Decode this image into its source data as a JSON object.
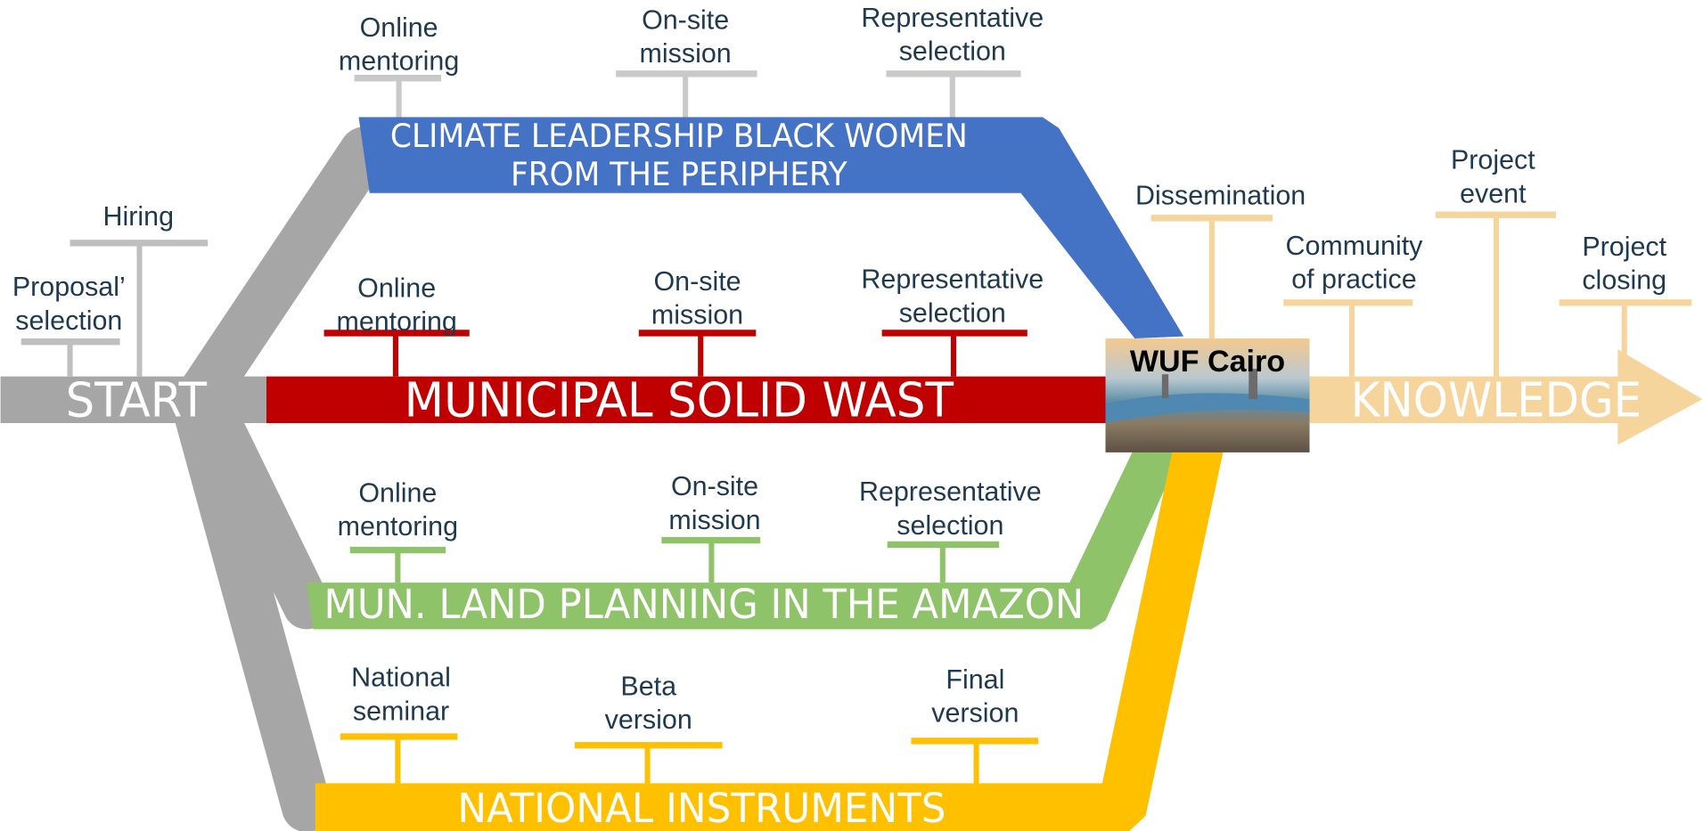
{
  "start": {
    "label": "START",
    "milestones": [
      {
        "lines": [
          "Proposal’",
          "selection"
        ]
      },
      {
        "lines": [
          "Hiring"
        ]
      }
    ]
  },
  "tracks": [
    {
      "title": [
        "CLIMATE LEADERSHIP BLACK WOMEN",
        "FROM THE PERIPHERY"
      ],
      "milestones": [
        {
          "lines": [
            "Online",
            "mentoring"
          ]
        },
        {
          "lines": [
            "On-site",
            "mission"
          ]
        },
        {
          "lines": [
            "Representative",
            "selection"
          ]
        }
      ]
    },
    {
      "title": [
        "MUNICIPAL SOLID WAST"
      ],
      "milestones": [
        {
          "lines": [
            "Online",
            "mentoring"
          ]
        },
        {
          "lines": [
            "On-site",
            "mission"
          ]
        },
        {
          "lines": [
            "Representative",
            "selection"
          ]
        }
      ]
    },
    {
      "title": [
        "MUN. LAND PLANNING IN THE AMAZON"
      ],
      "milestones": [
        {
          "lines": [
            "Online",
            "mentoring"
          ]
        },
        {
          "lines": [
            "On-site",
            "mission"
          ]
        },
        {
          "lines": [
            "Representative",
            "selection"
          ]
        }
      ]
    },
    {
      "title": [
        "NATIONAL INSTRUMENTS"
      ],
      "milestones": [
        {
          "lines": [
            "National",
            "seminar"
          ]
        },
        {
          "lines": [
            "Beta",
            "version"
          ]
        },
        {
          "lines": [
            "Final",
            "version"
          ]
        }
      ]
    }
  ],
  "hub": {
    "label": "WUF Cairo"
  },
  "end": {
    "label": "KNOWLEDGE",
    "milestones": [
      {
        "lines": [
          "Dissemination"
        ]
      },
      {
        "lines": [
          "Community",
          "of practice"
        ]
      },
      {
        "lines": [
          "Project",
          "event"
        ]
      },
      {
        "lines": [
          "Project",
          "closing"
        ]
      }
    ]
  }
}
